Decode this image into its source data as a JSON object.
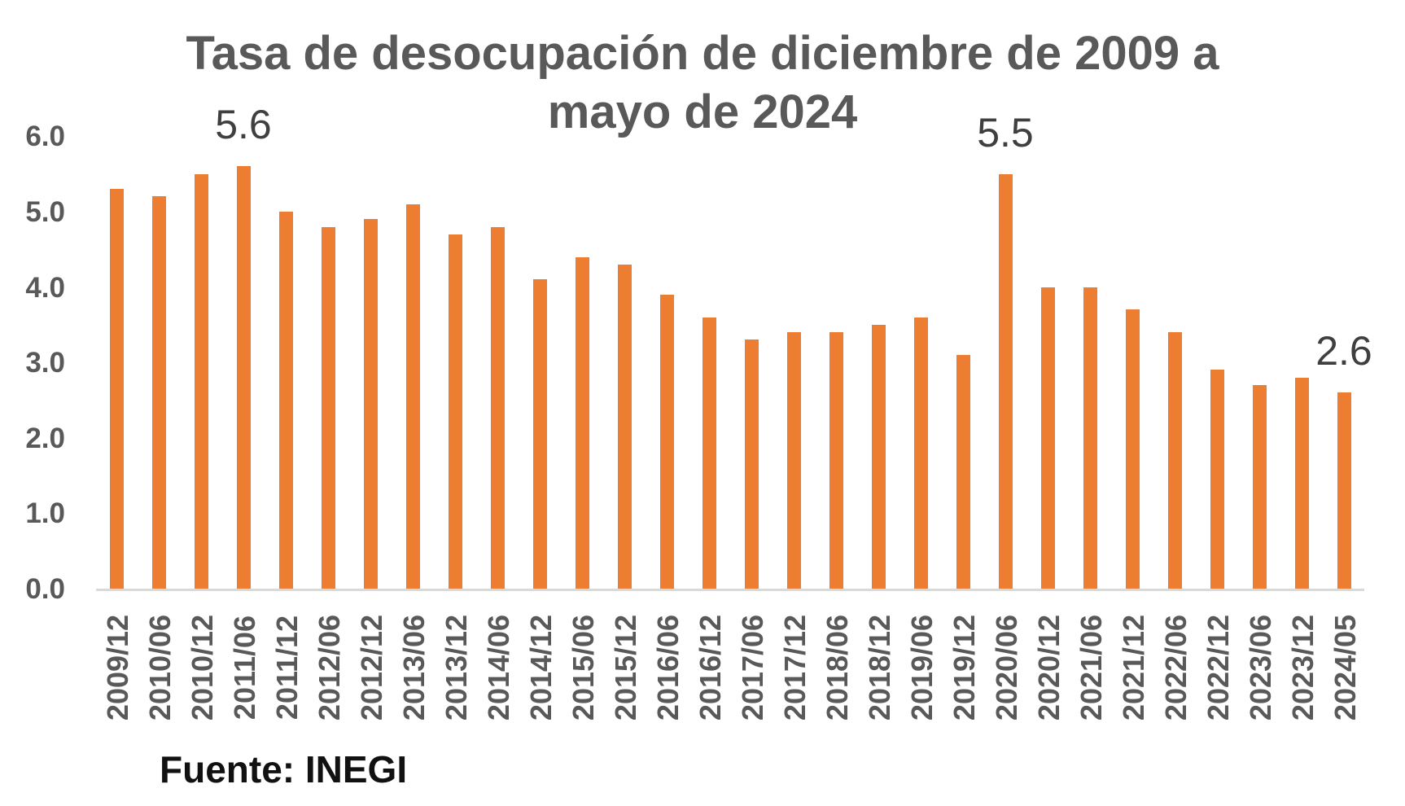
{
  "title": {
    "line1": "Tasa de desocupación de diciembre de 2009 a",
    "line2": "mayo de 2024"
  },
  "source_note": "Fuente: INEGI",
  "colors": {
    "bar": "#ED7D31",
    "title_text": "#595959",
    "axis_text": "#595959",
    "data_label_text": "#3F3F3F",
    "source_text": "#111111",
    "baseline": "#D9D9D9",
    "background": "#FFFFFF"
  },
  "chart_data": {
    "type": "bar",
    "title": "Tasa de desocupación de diciembre de 2009 a mayo de 2024",
    "xlabel": "",
    "ylabel": "",
    "ylim": [
      0,
      6
    ],
    "grid": false,
    "legend": null,
    "yticks": [
      {
        "value": 6,
        "label": "6.0"
      },
      {
        "value": 5,
        "label": "5.0"
      },
      {
        "value": 4,
        "label": "4.0"
      },
      {
        "value": 3,
        "label": "3.0"
      },
      {
        "value": 2,
        "label": "2.0"
      },
      {
        "value": 1,
        "label": "1.0"
      },
      {
        "value": 0,
        "label": "0.0"
      }
    ],
    "categories": [
      "2009/12",
      "2010/06",
      "2010/12",
      "2011/06",
      "2011/12",
      "2012/06",
      "2012/12",
      "2013/06",
      "2013/12",
      "2014/06",
      "2014/12",
      "2015/06",
      "2015/12",
      "2016/06",
      "2016/12",
      "2017/06",
      "2017/12",
      "2018/06",
      "2018/12",
      "2019/06",
      "2019/12",
      "2020/06",
      "2020/12",
      "2021/06",
      "2021/12",
      "2022/06",
      "2022/12",
      "2023/06",
      "2023/12",
      "2024/05"
    ],
    "values": [
      5.3,
      5.2,
      5.5,
      5.6,
      5.0,
      4.8,
      4.9,
      5.1,
      4.7,
      4.8,
      4.1,
      4.4,
      4.3,
      3.9,
      3.6,
      3.3,
      3.4,
      3.4,
      3.5,
      3.6,
      3.1,
      5.5,
      4.0,
      4.0,
      3.7,
      3.4,
      2.9,
      2.7,
      2.8,
      2.6
    ],
    "data_labels": [
      {
        "index": 3,
        "text": "5.6"
      },
      {
        "index": 21,
        "text": "5.5"
      },
      {
        "index": 29,
        "text": "2.6"
      }
    ]
  }
}
